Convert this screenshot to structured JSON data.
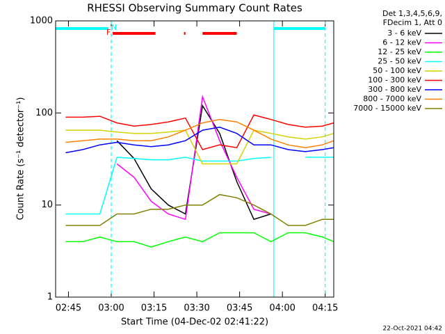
{
  "chart_data": {
    "type": "line",
    "title": "RHESSI Observing Summary Count Rates",
    "x_label": "Start Time (04-Dec-02 02:41:22)",
    "y_label": "Count Rate (s⁻¹ detector⁻¹)",
    "legend_title": [
      "Det 1,3,4,5,6,9,",
      "FDecim 1, Att 0"
    ],
    "footer": "22-Oct-2021 04:42",
    "log_y": true,
    "legend": "outside-right",
    "xlim": [
      "02:40:30",
      "04:18:00"
    ],
    "xticks": [
      "02:45",
      "03:00",
      "03:15",
      "03:30",
      "03:45",
      "04:00",
      "04:15"
    ],
    "ylim": [
      1,
      1000
    ],
    "yticks": [
      1,
      10,
      100,
      1000
    ],
    "x": [
      "02:44",
      "02:50",
      "02:56",
      "03:02",
      "03:08",
      "03:14",
      "03:20",
      "03:26",
      "03:32",
      "03:38",
      "03:44",
      "03:50",
      "03:56",
      "04:02",
      "04:08",
      "04:14",
      "04:18"
    ],
    "series": [
      {
        "name": "3 - 6 keV",
        "color": "#000000",
        "values": [
          null,
          null,
          null,
          50,
          32,
          15,
          10,
          8,
          120,
          60,
          18,
          7,
          8,
          null,
          null,
          null,
          null
        ]
      },
      {
        "name": "6 - 12 keV",
        "color": "#ff00ff",
        "values": [
          null,
          null,
          null,
          28,
          20,
          11,
          8,
          7,
          150,
          50,
          20,
          9,
          8,
          null,
          null,
          null,
          null
        ]
      },
      {
        "name": "12 - 25 keV",
        "color": "#00ff00",
        "values": [
          4,
          4,
          4.5,
          4,
          4,
          3.5,
          4,
          4.5,
          4,
          5,
          5,
          5,
          4,
          5,
          5,
          4.5,
          4
        ]
      },
      {
        "name": "25 - 50 keV",
        "color": "#00ffff",
        "values": [
          8,
          8,
          8,
          33,
          32,
          31,
          31,
          33,
          30,
          30,
          30,
          32,
          33,
          null,
          33,
          33,
          33
        ]
      },
      {
        "name": "50 - 100 keV",
        "color": "#d4d400",
        "values": [
          65,
          65,
          65,
          62,
          60,
          60,
          62,
          65,
          28,
          28,
          28,
          65,
          60,
          55,
          52,
          55,
          60
        ]
      },
      {
        "name": "100 - 300 keV",
        "color": "#ff0000",
        "values": [
          90,
          90,
          92,
          78,
          72,
          75,
          80,
          88,
          40,
          45,
          42,
          95,
          85,
          75,
          70,
          72,
          78
        ]
      },
      {
        "name": "300 - 800 keV",
        "color": "#0000ff",
        "values": [
          37,
          40,
          45,
          48,
          45,
          43,
          45,
          50,
          65,
          70,
          60,
          45,
          45,
          40,
          38,
          40,
          42
        ]
      },
      {
        "name": "800 - 7000 keV",
        "color": "#ff8000",
        "values": [
          48,
          50,
          52,
          52,
          50,
          50,
          55,
          65,
          78,
          85,
          80,
          65,
          52,
          45,
          42,
          45,
          50
        ]
      },
      {
        "name": "7000 - 15000 keV",
        "color": "#808000",
        "values": [
          6,
          6,
          6,
          8,
          8,
          9,
          9,
          10,
          10,
          13,
          12,
          10,
          8,
          6,
          6,
          7,
          7
        ]
      }
    ],
    "flags": [
      {
        "label": "N",
        "color": "#00ffff",
        "intervals": [
          [
            "02:40:30",
            "02:59:00"
          ],
          [
            "03:57:00",
            "04:15:00"
          ]
        ]
      },
      {
        "label": "F",
        "color": "#ff0000",
        "intervals": [
          [
            "03:00:30",
            "03:15:30"
          ],
          [
            "03:25:30",
            "03:26:00"
          ],
          [
            "03:32:00",
            "03:44:00"
          ]
        ]
      }
    ],
    "vlines": [
      {
        "x": "03:00:00",
        "color": "#00ffff",
        "dashed": true
      },
      {
        "x": "03:57:00",
        "color": "#00ffff",
        "dashed": false
      },
      {
        "x": "04:15:00",
        "color": "#00ffff",
        "dashed": true
      }
    ]
  }
}
